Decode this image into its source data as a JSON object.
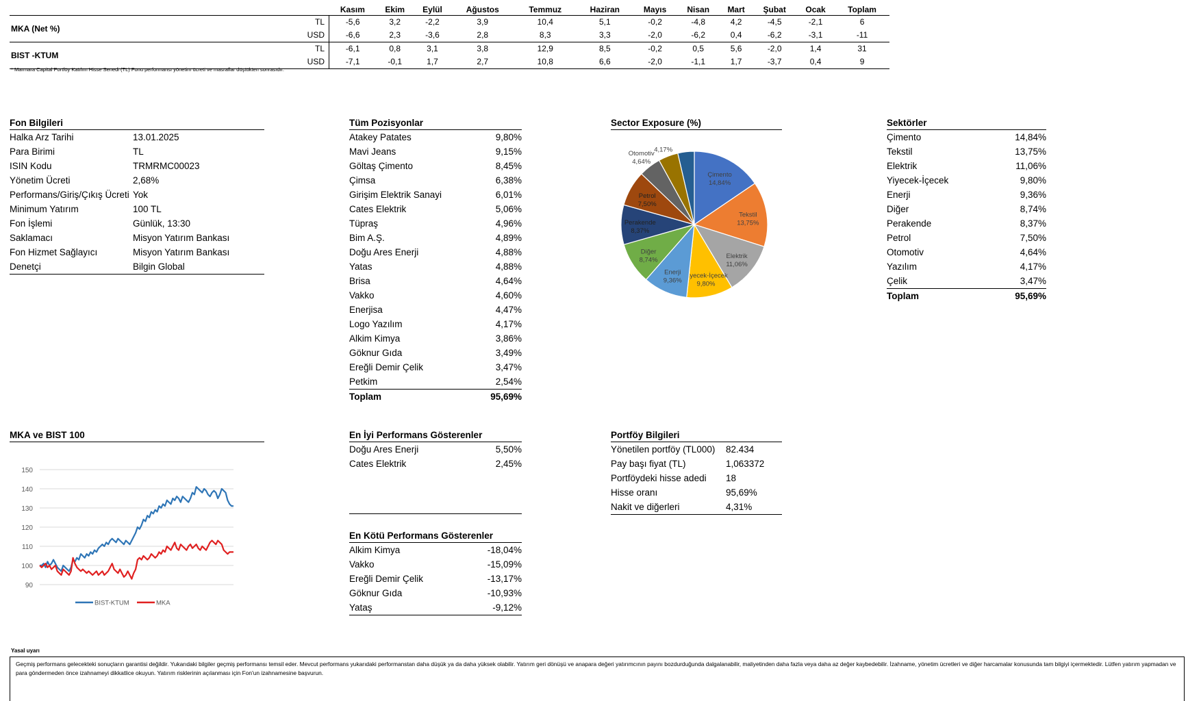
{
  "performance_table": {
    "months": [
      "Kasım",
      "Ekim",
      "Eylül",
      "Ağustos",
      "Temmuz",
      "Haziran",
      "Mayıs",
      "Nisan",
      "Mart",
      "Şubat",
      "Ocak",
      "Toplam"
    ],
    "rows": [
      {
        "fund": "MKA (Net %)",
        "currency": "TL",
        "values": [
          "-5,6",
          "3,2",
          "-2,2",
          "3,9",
          "10,4",
          "5,1",
          "-0,2",
          "-4,8",
          "4,2",
          "-4,5",
          "-2,1",
          "6"
        ]
      },
      {
        "fund": "",
        "currency": "USD",
        "values": [
          "-6,6",
          "2,3",
          "-3,6",
          "2,8",
          "8,3",
          "3,3",
          "-2,0",
          "-6,2",
          "0,4",
          "-6,2",
          "-3,1",
          "-11"
        ]
      },
      {
        "fund": "BIST -KTUM",
        "currency": "TL",
        "values": [
          "-6,1",
          "0,8",
          "3,1",
          "3,8",
          "12,9",
          "8,5",
          "-0,2",
          "0,5",
          "5,6",
          "-2,0",
          "1,4",
          "31"
        ]
      },
      {
        "fund": "",
        "currency": "USD",
        "values": [
          "-7,1",
          "-0,1",
          "1,7",
          "2,7",
          "10,8",
          "6,6",
          "-2,0",
          "-1,1",
          "1,7",
          "-3,7",
          "0,4",
          "9"
        ]
      }
    ],
    "footnote": "* Marmara Capital Portföy Katılım Hisse Senedi (TL) Fonu performansı yönetim ücreti ve masraflar düştükten sonrasıdır."
  },
  "fon_bilgileri": {
    "title": "Fon Bilgileri",
    "items": [
      {
        "k": "Halka Arz Tarihi",
        "v": "13.01.2025"
      },
      {
        "k": "Para Birimi",
        "v": "TL"
      },
      {
        "k": "ISIN Kodu",
        "v": "TRMRMC00023"
      },
      {
        "k": "Yönetim Ücreti",
        "v": "2,68%"
      },
      {
        "k": "Performans/Giriş/Çıkış Ücreti",
        "v": "Yok"
      },
      {
        "k": "Minimum Yatırım",
        "v": "100 TL"
      },
      {
        "k": "Fon İşlemi",
        "v": "Günlük, 13:30"
      },
      {
        "k": "Saklamacı",
        "v": "Misyon Yatırım Bankası"
      },
      {
        "k": "Fon Hizmet Sağlayıcı",
        "v": "Misyon Yatırım Bankası"
      },
      {
        "k": "Denetçi",
        "v": "Bilgin Global"
      }
    ]
  },
  "tum_pozisyonlar": {
    "title": "Tüm Pozisyonlar",
    "items": [
      {
        "k": "Atakey Patates",
        "v": "9,80%"
      },
      {
        "k": "Mavi Jeans",
        "v": "9,15%"
      },
      {
        "k": "Göltaş Çimento",
        "v": "8,45%"
      },
      {
        "k": "Çimsa",
        "v": "6,38%"
      },
      {
        "k": "Girişim Elektrik Sanayi",
        "v": "6,01%"
      },
      {
        "k": "Cates Elektrik",
        "v": "5,06%"
      },
      {
        "k": "Tüpraş",
        "v": "4,96%"
      },
      {
        "k": "Bim A.Ş.",
        "v": "4,89%"
      },
      {
        "k": "Doğu Ares Enerji",
        "v": "4,88%"
      },
      {
        "k": "Yatas",
        "v": "4,88%"
      },
      {
        "k": "Brisa",
        "v": "4,64%"
      },
      {
        "k": "Vakko",
        "v": "4,60%"
      },
      {
        "k": "Enerjisa",
        "v": "4,47%"
      },
      {
        "k": "Logo Yazılım",
        "v": "4,17%"
      },
      {
        "k": "Alkim Kimya",
        "v": "3,86%"
      },
      {
        "k": "Göknur Gıda",
        "v": "3,49%"
      },
      {
        "k": "Ereğli Demir Çelik",
        "v": "3,47%"
      },
      {
        "k": "Petkim",
        "v": "2,54%"
      }
    ],
    "total_label": "Toplam",
    "total_value": "95,69%"
  },
  "sektorler": {
    "title": "Sektörler",
    "items": [
      {
        "k": "Çimento",
        "v": "14,84%"
      },
      {
        "k": "Tekstil",
        "v": "13,75%"
      },
      {
        "k": "Elektrik",
        "v": "11,06%"
      },
      {
        "k": "Yiyecek-İçecek",
        "v": "9,80%"
      },
      {
        "k": "Enerji",
        "v": "9,36%"
      },
      {
        "k": "Diğer",
        "v": "8,74%"
      },
      {
        "k": "Perakende",
        "v": "8,37%"
      },
      {
        "k": "Petrol",
        "v": "7,50%"
      },
      {
        "k": "Otomotiv",
        "v": "4,64%"
      },
      {
        "k": "Yazılım",
        "v": "4,17%"
      },
      {
        "k": "Çelik",
        "v": "3,47%"
      }
    ],
    "total_label": "Toplam",
    "total_value": "95,69%"
  },
  "en_iyi": {
    "title": "En İyi Performans Gösterenler",
    "items": [
      {
        "k": "Doğu Ares Enerji",
        "v": "5,50%"
      },
      {
        "k": "Cates Elektrik",
        "v": "2,45%"
      }
    ]
  },
  "en_kotu": {
    "title": "En Kötü Performans Gösterenler",
    "items": [
      {
        "k": "Alkim Kimya",
        "v": "-18,04%"
      },
      {
        "k": "Vakko",
        "v": "-15,09%"
      },
      {
        "k": "Ereğli Demir Çelik",
        "v": "-13,17%"
      },
      {
        "k": "Göknur Gıda",
        "v": "-10,93%"
      },
      {
        "k": "Yataş",
        "v": "-9,12%"
      }
    ]
  },
  "portfoy_bilgileri": {
    "title": "Portföy Bilgileri",
    "items": [
      {
        "k": "Yönetilen portföy (TL000)",
        "v": "82.434"
      },
      {
        "k": "Pay başı fiyat (TL)",
        "v": "1,063372"
      },
      {
        "k": "Portföydeki hisse adedi",
        "v": "18"
      },
      {
        "k": "Hisse oranı",
        "v": "95,69%"
      },
      {
        "k": "Nakit ve diğerleri",
        "v": "4,31%"
      }
    ]
  },
  "legal": {
    "title": "Yasal uyarı",
    "text": "Geçmiş performans gelecekteki sonuçların garantisi değildir. Yukarıdaki bilgiler geçmiş performansı temsil eder. Mevcut performans yukarıdaki performanstan daha düşük ya da daha yüksek olabilir. Yatırım geri dönüşü ve anapara değeri yatırımcının payını bozdurduğunda dalgalanabilir, maliyetinden daha fazla veya daha az değer kaybedebilir. İzahname, yönetim ücretleri ve diğer harcamalar konusunda tam bilgiyi içermektedir. Lütfen yatırım yapmadan ve para göndermeden önce izahnameyi dikkatlice okuyun.  Yatırım risklerinin açılanması için Fon'un izahnamesine başvurun."
  },
  "chart_data": [
    {
      "type": "pie",
      "title": "Sector Exposure (%)",
      "slices": [
        {
          "label": "Çimento",
          "value": 14.84,
          "text": "14,84%",
          "color": "#4472C4"
        },
        {
          "label": "Tekstil",
          "value": 13.75,
          "text": "13,75%",
          "color": "#ED7D31"
        },
        {
          "label": "Elektrik",
          "value": 11.06,
          "text": "11,06%",
          "color": "#A5A5A5"
        },
        {
          "label": "Yiyecek-İçecek",
          "value": 9.8,
          "text": "9,80%",
          "color": "#FFC000"
        },
        {
          "label": "Enerji",
          "value": 9.36,
          "text": "9,36%",
          "color": "#5B9BD5"
        },
        {
          "label": "Diğer",
          "value": 8.74,
          "text": "8,74%",
          "color": "#70AD47"
        },
        {
          "label": "Perakende",
          "value": 8.37,
          "text": "8,37%",
          "color": "#264478"
        },
        {
          "label": "Petrol",
          "value": 7.5,
          "text": "7,50%",
          "color": "#9E480E"
        },
        {
          "label": "Otomotiv",
          "value": 4.64,
          "text": "4,64%",
          "color": "#636363"
        },
        {
          "label": "Yazılım",
          "value": 4.17,
          "text": "4,17%",
          "color": "#997300"
        },
        {
          "label": "Çelik",
          "value": 3.47,
          "text": "3,47%",
          "color": "#255E91"
        }
      ]
    },
    {
      "type": "line",
      "title": "MKA ve BIST 100",
      "ylim": [
        90,
        150
      ],
      "yticks": [
        90,
        100,
        110,
        120,
        130,
        140,
        150
      ],
      "grid": true,
      "legend": "bottom",
      "series": [
        {
          "name": "BIST-KTUM",
          "color": "#2E75B6",
          "values": [
            100,
            100,
            101,
            99,
            102,
            100,
            101,
            103,
            101,
            99,
            98,
            97,
            100,
            99,
            98,
            97,
            99,
            103,
            102,
            104,
            103,
            106,
            105,
            104,
            106,
            105,
            107,
            106,
            108,
            107,
            109,
            110,
            111,
            110,
            112,
            111,
            113,
            114,
            113,
            112,
            114,
            113,
            112,
            111,
            113,
            112,
            111,
            113,
            115,
            117,
            120,
            119,
            121,
            124,
            123,
            126,
            125,
            128,
            127,
            129,
            128,
            131,
            130,
            132,
            131,
            134,
            133,
            132,
            135,
            134,
            136,
            135,
            133,
            136,
            135,
            134,
            133,
            135,
            138,
            137,
            141,
            140,
            139,
            138,
            140,
            139,
            137,
            136,
            138,
            139,
            138,
            135,
            137,
            140,
            139,
            138,
            134,
            132,
            131,
            131
          ]
        },
        {
          "name": "MKA",
          "color": "#E02020",
          "values": [
            100,
            99,
            100,
            101,
            99,
            100,
            98,
            99,
            100,
            97,
            96,
            95,
            98,
            97,
            96,
            95,
            97,
            104,
            101,
            99,
            98,
            97,
            98,
            97,
            96,
            97,
            96,
            95,
            96,
            97,
            95,
            96,
            97,
            95,
            96,
            97,
            99,
            101,
            98,
            97,
            96,
            98,
            96,
            94,
            95,
            97,
            95,
            93,
            96,
            98,
            103,
            104,
            103,
            105,
            104,
            103,
            104,
            106,
            105,
            104,
            105,
            107,
            106,
            108,
            107,
            110,
            109,
            108,
            110,
            112,
            109,
            108,
            111,
            110,
            109,
            108,
            110,
            111,
            109,
            110,
            111,
            109,
            108,
            110,
            109,
            108,
            110,
            112,
            113,
            112,
            111,
            113,
            112,
            111,
            108,
            107,
            106,
            107,
            107,
            107
          ]
        }
      ]
    }
  ]
}
